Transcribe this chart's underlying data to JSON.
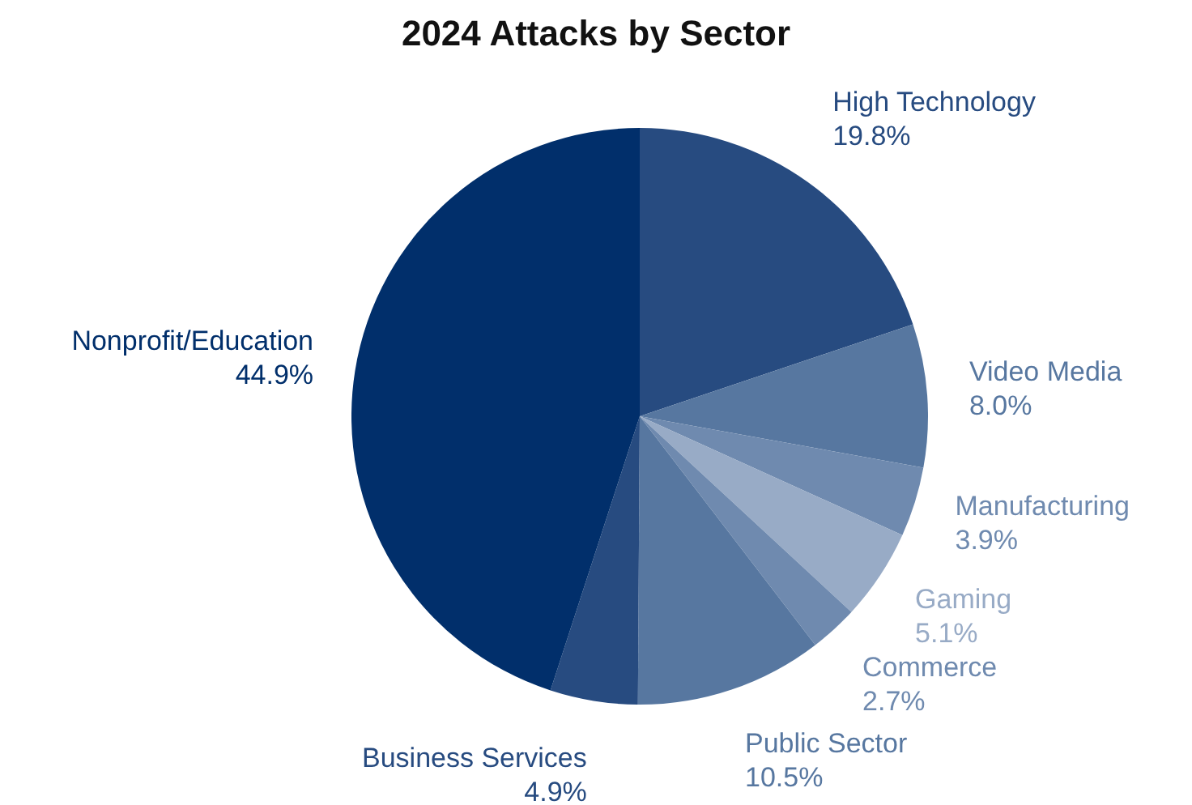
{
  "chart_data": {
    "type": "pie",
    "title": "2024 Attacks by Sector",
    "categories": [
      "High Technology",
      "Video Media",
      "Manufacturing",
      "Gaming",
      "Commerce",
      "Public Sector",
      "Business Services",
      "Nonprofit/Education"
    ],
    "values": [
      19.8,
      8.0,
      3.9,
      5.1,
      2.7,
      10.5,
      4.9,
      44.9
    ],
    "colors": [
      "#274b80",
      "#5777a0",
      "#6f8aaf",
      "#98abc6",
      "#6f8aaf",
      "#5777a0",
      "#274b80",
      "#012f6b"
    ],
    "value_labels": [
      "19.8%",
      "8.0%",
      "3.9%",
      "5.1%",
      "2.7%",
      "10.5%",
      "4.9%",
      "44.9%"
    ],
    "legend": false
  }
}
